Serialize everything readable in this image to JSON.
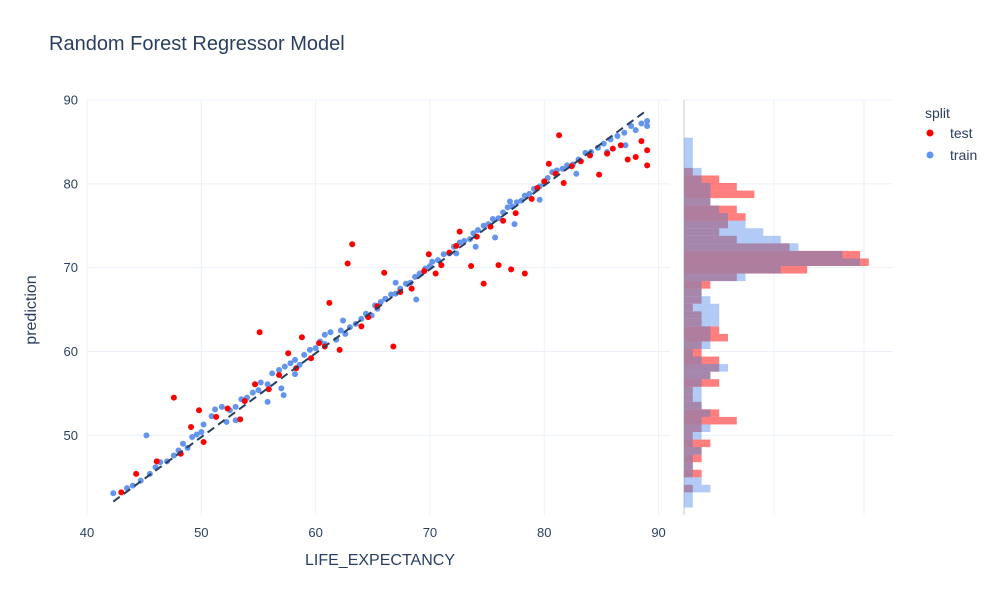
{
  "chart_data": {
    "type": "scatter",
    "title": "Random Forest Regressor Model",
    "xlabel": "LIFE_EXPECTANCY",
    "ylabel": "prediction",
    "xlim": [
      40,
      91
    ],
    "ylim": [
      40.5,
      90
    ],
    "x_ticks": [
      40,
      50,
      60,
      70,
      80,
      90
    ],
    "y_ticks": [
      50,
      60,
      70,
      80,
      90
    ],
    "grid": true,
    "legend": {
      "title": "split",
      "position": "top-right"
    },
    "reference_line": {
      "style": "dashed",
      "color": "#2a3f5f",
      "x": [
        42.3,
        89
      ],
      "y": [
        42.1,
        88.8
      ]
    },
    "series": [
      {
        "name": "train",
        "color": "#6495ED",
        "points": [
          [
            42.3,
            43.1
          ],
          [
            43.5,
            43.7
          ],
          [
            44,
            44
          ],
          [
            44.7,
            44.6
          ],
          [
            45.2,
            50
          ],
          [
            45.5,
            45.4
          ],
          [
            46,
            46.2
          ],
          [
            46.4,
            46.8
          ],
          [
            47,
            46.9
          ],
          [
            47.6,
            47.6
          ],
          [
            48,
            48.2
          ],
          [
            48.4,
            49
          ],
          [
            48.8,
            48.5
          ],
          [
            49.2,
            49.8
          ],
          [
            49.6,
            50.1
          ],
          [
            50,
            50.4
          ],
          [
            50.2,
            51.3
          ],
          [
            50.9,
            52.3
          ],
          [
            51.2,
            53.1
          ],
          [
            51.8,
            53.4
          ],
          [
            52.2,
            51.6
          ],
          [
            52.5,
            53
          ],
          [
            53,
            53.4
          ],
          [
            53.5,
            54.3
          ],
          [
            54,
            54.5
          ],
          [
            54.5,
            55.1
          ],
          [
            55,
            55.4
          ],
          [
            55.2,
            56.3
          ],
          [
            55.8,
            56.1
          ],
          [
            56.2,
            57.4
          ],
          [
            56.8,
            57.8
          ],
          [
            57,
            55.6
          ],
          [
            57.3,
            58.2
          ],
          [
            57.8,
            58.6
          ],
          [
            58.2,
            59
          ],
          [
            58.6,
            58.4
          ],
          [
            59,
            59.6
          ],
          [
            59.5,
            60.2
          ],
          [
            60,
            60.4
          ],
          [
            60.4,
            61.2
          ],
          [
            60.8,
            62
          ],
          [
            61.3,
            62.3
          ],
          [
            61.8,
            61.4
          ],
          [
            62.2,
            62.5
          ],
          [
            62.6,
            62.1
          ],
          [
            63,
            62.9
          ],
          [
            63.5,
            63.3
          ],
          [
            64,
            63.9
          ],
          [
            64.4,
            64.5
          ],
          [
            64.9,
            64.3
          ],
          [
            65.2,
            65.5
          ],
          [
            65.7,
            65.9
          ],
          [
            66.1,
            66.3
          ],
          [
            66.6,
            66.8
          ],
          [
            67,
            66.9
          ],
          [
            67.4,
            67.5
          ],
          [
            67.9,
            68.1
          ],
          [
            68.3,
            68.2
          ],
          [
            68.7,
            68.9
          ],
          [
            69.1,
            69.3
          ],
          [
            69.6,
            69.9
          ],
          [
            70,
            70.2
          ],
          [
            70.2,
            70.7
          ],
          [
            70.7,
            70.9
          ],
          [
            71.2,
            71.6
          ],
          [
            71.7,
            71.7
          ],
          [
            72.1,
            72.5
          ],
          [
            72.6,
            73
          ],
          [
            73,
            73.2
          ],
          [
            73.5,
            73.4
          ],
          [
            73.8,
            74.1
          ],
          [
            74.2,
            74.5
          ],
          [
            74.7,
            75
          ],
          [
            75.1,
            75.2
          ],
          [
            75.5,
            75.8
          ],
          [
            76,
            75.9
          ],
          [
            76.4,
            76.6
          ],
          [
            76.8,
            77.2
          ],
          [
            77.2,
            77.3
          ],
          [
            77.6,
            77.8
          ],
          [
            78,
            78
          ],
          [
            78.3,
            78.6
          ],
          [
            78.7,
            78.8
          ],
          [
            79.1,
            79.4
          ],
          [
            79.6,
            79.7
          ],
          [
            80,
            80.1
          ],
          [
            80.3,
            80.7
          ],
          [
            80.7,
            81.4
          ],
          [
            81.1,
            81.6
          ],
          [
            81.6,
            81.8
          ],
          [
            82,
            82.2
          ],
          [
            82.5,
            82.3
          ],
          [
            83,
            82.9
          ],
          [
            83.6,
            83.7
          ],
          [
            84.1,
            83.8
          ],
          [
            84.7,
            84.3
          ],
          [
            85.2,
            84.8
          ],
          [
            85.8,
            85.3
          ],
          [
            86.4,
            85.7
          ],
          [
            87,
            86.1
          ],
          [
            87.6,
            86.9
          ],
          [
            88,
            86.4
          ],
          [
            88.5,
            87.2
          ],
          [
            89,
            87.5
          ],
          [
            89,
            86.9
          ],
          [
            53,
            51.8
          ],
          [
            55.8,
            54
          ],
          [
            57.2,
            54.8
          ],
          [
            58.2,
            57.3
          ],
          [
            60.8,
            60.9
          ],
          [
            65.4,
            65.1
          ],
          [
            68.8,
            66.2
          ],
          [
            74,
            72.5
          ],
          [
            75.7,
            73.6
          ],
          [
            77.4,
            75.2
          ],
          [
            79.6,
            78.1
          ],
          [
            85.5,
            83.8
          ],
          [
            87.1,
            84.6
          ],
          [
            62.4,
            63.7
          ],
          [
            67,
            68.2
          ],
          [
            72.3,
            71.7
          ],
          [
            77,
            77.9
          ],
          [
            82.8,
            81.2
          ]
        ]
      },
      {
        "name": "test",
        "color": "#FF0000",
        "points": [
          [
            43,
            43.2
          ],
          [
            44.3,
            45.4
          ],
          [
            46.1,
            46.9
          ],
          [
            47.6,
            54.5
          ],
          [
            48.2,
            47.8
          ],
          [
            49.1,
            51
          ],
          [
            49.8,
            53
          ],
          [
            50.2,
            49.2
          ],
          [
            51.3,
            52.2
          ],
          [
            52.3,
            53.2
          ],
          [
            53.4,
            51.9
          ],
          [
            53.8,
            54.1
          ],
          [
            54.7,
            56.1
          ],
          [
            55.1,
            62.3
          ],
          [
            55.9,
            55.5
          ],
          [
            56.8,
            57.2
          ],
          [
            57.6,
            59.8
          ],
          [
            58.3,
            58
          ],
          [
            58.8,
            61.7
          ],
          [
            59.6,
            59.2
          ],
          [
            60.3,
            61
          ],
          [
            60.8,
            60.6
          ],
          [
            61.2,
            65.8
          ],
          [
            62.1,
            60.2
          ],
          [
            62.8,
            70.5
          ],
          [
            63.2,
            72.8
          ],
          [
            64,
            63
          ],
          [
            64.6,
            64.1
          ],
          [
            65.4,
            65.4
          ],
          [
            66,
            69.4
          ],
          [
            66.8,
            60.6
          ],
          [
            67.4,
            67.1
          ],
          [
            68.4,
            67.5
          ],
          [
            69.5,
            69.6
          ],
          [
            69.9,
            71.6
          ],
          [
            70.5,
            69.3
          ],
          [
            71,
            70.3
          ],
          [
            71.7,
            71.8
          ],
          [
            72.3,
            72.6
          ],
          [
            72.6,
            74.3
          ],
          [
            73.6,
            70.2
          ],
          [
            74.1,
            73.7
          ],
          [
            74.7,
            68.1
          ],
          [
            75.3,
            74.9
          ],
          [
            76,
            70.3
          ],
          [
            76.4,
            75.6
          ],
          [
            77.1,
            69.8
          ],
          [
            77.5,
            76.5
          ],
          [
            78.3,
            69.3
          ],
          [
            78.9,
            78.2
          ],
          [
            79.4,
            79.5
          ],
          [
            80,
            80.3
          ],
          [
            80.4,
            82.4
          ],
          [
            81,
            81.2
          ],
          [
            81.3,
            85.8
          ],
          [
            81.7,
            80.1
          ],
          [
            82.4,
            82.1
          ],
          [
            83.2,
            82.7
          ],
          [
            84,
            83.4
          ],
          [
            84.8,
            81.1
          ],
          [
            85.5,
            83.6
          ],
          [
            86,
            84.2
          ],
          [
            86.7,
            84.6
          ],
          [
            87.3,
            82.9
          ],
          [
            88,
            83.2
          ],
          [
            88.5,
            85.1
          ],
          [
            89,
            82.2
          ],
          [
            89,
            84
          ]
        ]
      }
    ],
    "marginal_histogram": {
      "orientation": "horizontal",
      "axis": "prediction",
      "bin_width": 0.9,
      "bins_start": 41.4,
      "train_counts": [
        1,
        1,
        3,
        2,
        1,
        1,
        1,
        2,
        1,
        2,
        3,
        2,
        3,
        2,
        2,
        2,
        2,
        3,
        5,
        2,
        1,
        3,
        3,
        3,
        4,
        4,
        4,
        3,
        2,
        2,
        7,
        11,
        20,
        18,
        13,
        11,
        9,
        7,
        5,
        4,
        3,
        3,
        3,
        2,
        2,
        1,
        1,
        1,
        1
      ],
      "test_counts": [
        0,
        0,
        1,
        0,
        2,
        1,
        2,
        2,
        3,
        1,
        2,
        6,
        4,
        2,
        1,
        1,
        4,
        3,
        4,
        4,
        2,
        2,
        5,
        4,
        2,
        2,
        1,
        2,
        2,
        3,
        6,
        14,
        21,
        20,
        12,
        6,
        4,
        5,
        7,
        6,
        3,
        8,
        6,
        4,
        1,
        0,
        0,
        0,
        0
      ],
      "train_color": "#6495ED",
      "test_color": "#FF0000",
      "overlap_color": "#a67ea3"
    }
  }
}
